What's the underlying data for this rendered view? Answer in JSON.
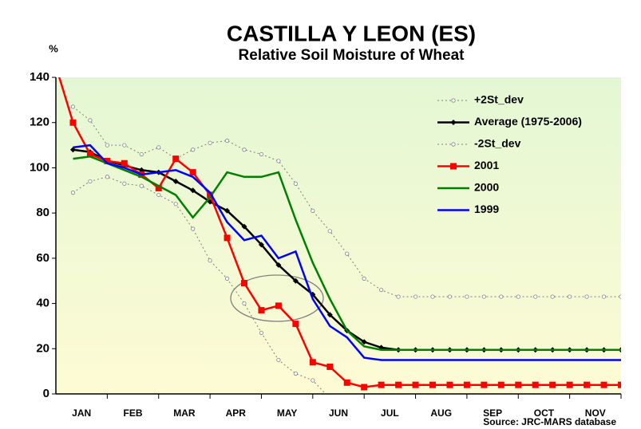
{
  "chart_data": {
    "type": "line",
    "title": "CASTILLA Y LEON (ES)",
    "subtitle": "Relative Soil Moisture of Wheat",
    "y_label": "%",
    "source": "Source: JRC-MARS database",
    "categories": [
      null,
      "JAN",
      null,
      null,
      "FEB",
      null,
      null,
      "MAR",
      null,
      null,
      "APR",
      null,
      null,
      "MAY",
      null,
      null,
      "JUN",
      null,
      null,
      "JUL",
      null,
      null,
      "AUG",
      null,
      null,
      "SEP",
      null,
      null,
      "OCT",
      null,
      null,
      "NOV",
      null,
      null
    ],
    "ylim": [
      0,
      140
    ],
    "yticks": [
      0,
      20,
      40,
      60,
      80,
      100,
      120,
      140
    ],
    "legend": "upper right",
    "series": [
      {
        "name": "+2St_dev",
        "color": "#808080",
        "style": "dotted",
        "values": [
          null,
          127,
          121,
          110,
          110,
          106,
          109,
          104,
          108,
          111,
          112,
          108,
          106,
          103,
          93,
          81,
          72,
          62,
          51,
          46,
          43,
          43,
          43,
          43,
          43,
          43,
          43,
          43,
          43,
          43,
          43,
          43,
          43,
          43
        ]
      },
      {
        "name": "Average (1975-2006)",
        "color": "#000000",
        "style": "diamond",
        "values": [
          null,
          108,
          107,
          103,
          101,
          99,
          98,
          94,
          90,
          85,
          81,
          74,
          66,
          57,
          50,
          44,
          35,
          28,
          23,
          20.5,
          19.5,
          19.5,
          19.5,
          19.5,
          19.5,
          19.5,
          19.5,
          19.5,
          19.5,
          19.5,
          19.5,
          19.5,
          19.5,
          19.5
        ]
      },
      {
        "name": "-2St_dev",
        "color": "#808080",
        "style": "dotted",
        "values": [
          null,
          89,
          94,
          96,
          93,
          92,
          88,
          84,
          73,
          59,
          51,
          40,
          27,
          15,
          9,
          6,
          -2,
          null,
          null,
          null,
          null,
          null,
          null,
          null,
          null,
          null,
          null,
          null,
          null,
          null,
          null,
          null,
          null,
          null
        ]
      },
      {
        "name": "2001",
        "color": "#ff0000",
        "style": "square",
        "values": [
          145,
          120,
          106,
          103,
          102,
          97,
          91,
          104,
          98,
          88,
          69,
          49,
          37,
          39,
          31,
          14,
          12,
          5,
          3,
          4,
          4,
          4,
          4,
          4,
          4,
          4,
          4,
          4,
          4,
          4,
          4,
          4,
          4,
          4
        ]
      },
      {
        "name": "2000",
        "color": "#008000",
        "style": "solid",
        "values": [
          null,
          104,
          105,
          102,
          99,
          96,
          92,
          88,
          78,
          87,
          98,
          96,
          96,
          98,
          77,
          58,
          42,
          28,
          21,
          19.5,
          19.5,
          19.5,
          19.5,
          19.5,
          19.5,
          19.5,
          19.5,
          19.5,
          19.5,
          19.5,
          19.5,
          19.5,
          19.5,
          19.5
        ]
      },
      {
        "name": "1999",
        "color": "#0000ff",
        "style": "solid",
        "values": [
          null,
          109,
          110,
          102,
          100,
          97,
          98,
          99,
          96,
          89,
          76,
          68,
          70,
          60,
          63,
          42,
          30,
          25,
          16,
          15,
          15,
          15,
          15,
          15,
          15,
          15,
          15,
          15,
          15,
          15,
          15,
          15,
          15,
          15
        ]
      }
    ]
  }
}
